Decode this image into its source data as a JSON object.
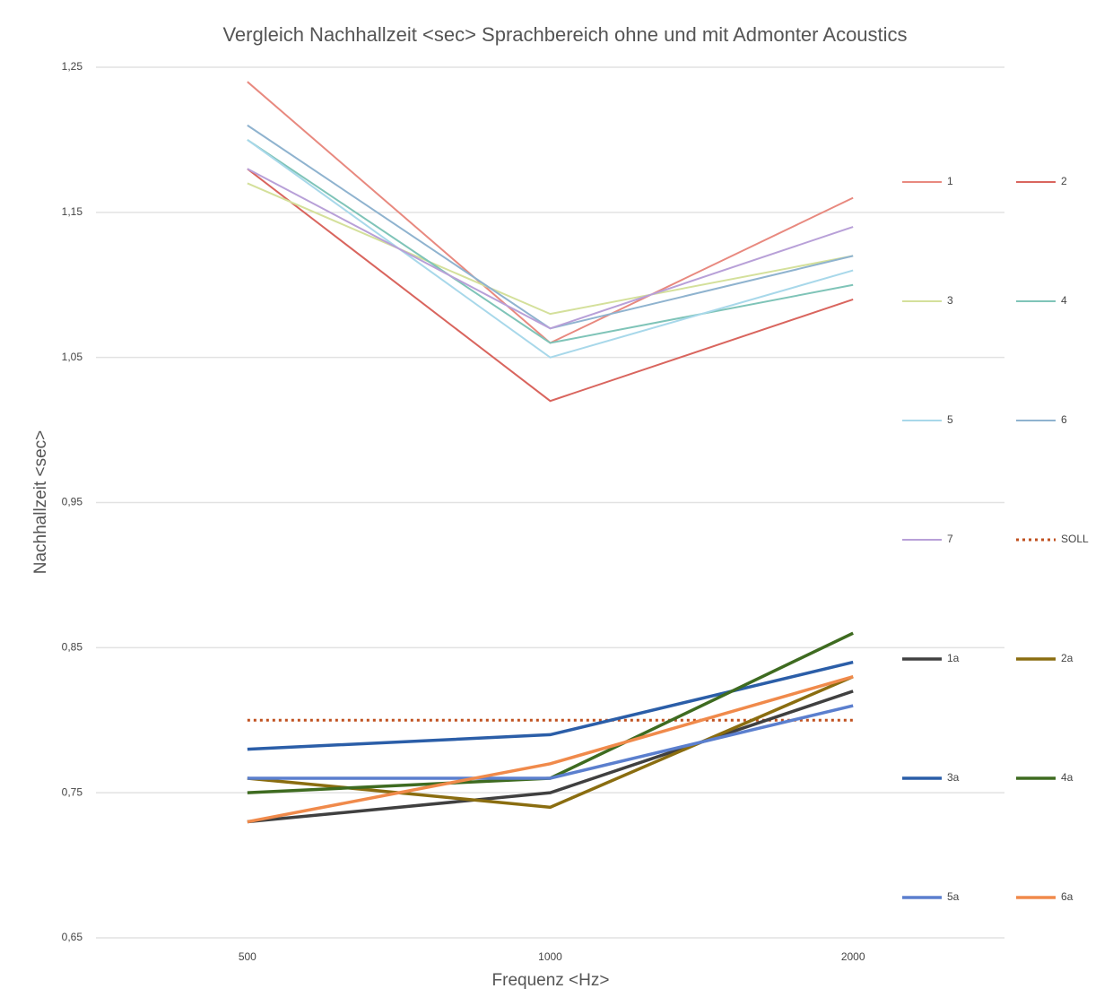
{
  "chart_data": {
    "type": "line",
    "title": "Vergleich Nachhallzeit <sec> Sprachbereich ohne und mit Admonter Acoustics",
    "y_label": "Nachhallzeit <sec>",
    "x_label": "Frequenz <Hz>",
    "categories": [
      "500",
      "1000",
      "2000"
    ],
    "ylim": [
      0.65,
      1.25
    ],
    "yticks": [
      {
        "value": 0.65,
        "label": "0,65"
      },
      {
        "value": 0.75,
        "label": "0,75"
      },
      {
        "value": 0.85,
        "label": "0,85"
      },
      {
        "value": 0.95,
        "label": "0,95"
      },
      {
        "value": 1.05,
        "label": "1,05"
      },
      {
        "value": 1.15,
        "label": "1,15"
      },
      {
        "value": 1.25,
        "label": "1,25"
      }
    ],
    "grid": true,
    "legend": "right",
    "series": [
      {
        "name": "1",
        "color": "#e8897f",
        "values": [
          1.24,
          1.06,
          1.16
        ]
      },
      {
        "name": "2",
        "color": "#d9655e",
        "values": [
          1.18,
          1.02,
          1.09
        ]
      },
      {
        "name": "3",
        "color": "#d4e09b",
        "values": [
          1.17,
          1.08,
          1.12
        ]
      },
      {
        "name": "4",
        "color": "#7fc4b8",
        "values": [
          1.2,
          1.06,
          1.1
        ]
      },
      {
        "name": "5",
        "color": "#a8d8ea",
        "values": [
          1.2,
          1.05,
          1.11
        ]
      },
      {
        "name": "6",
        "color": "#8fb3cf",
        "values": [
          1.21,
          1.07,
          1.12
        ]
      },
      {
        "name": "7",
        "color": "#b8a0d8",
        "values": [
          1.18,
          1.07,
          1.14
        ]
      },
      {
        "name": "SOLL",
        "color": "#c0501f",
        "line_style": "dotted",
        "values": [
          0.8,
          0.8,
          0.8
        ]
      },
      {
        "name": "1a",
        "color": "#404040",
        "values": [
          0.73,
          0.75,
          0.82
        ]
      },
      {
        "name": "2a",
        "color": "#8a6d10",
        "values": [
          0.76,
          0.74,
          0.83
        ]
      },
      {
        "name": "3a",
        "color": "#2b5ea8",
        "values": [
          0.78,
          0.79,
          0.84
        ]
      },
      {
        "name": "4a",
        "color": "#3e6b20",
        "values": [
          0.75,
          0.76,
          0.86
        ]
      },
      {
        "name": "5a",
        "color": "#5b7fce",
        "values": [
          0.76,
          0.76,
          0.81
        ]
      },
      {
        "name": "6a",
        "color": "#f08a4b",
        "values": [
          0.73,
          0.77,
          0.83
        ]
      }
    ]
  }
}
